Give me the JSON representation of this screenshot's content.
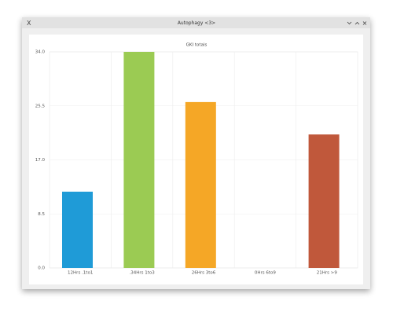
{
  "window": {
    "title": "Autophagy <3>"
  },
  "chart_data": {
    "type": "bar",
    "title": "GKI totals",
    "categories": [
      "12Hrs .1to1",
      ".34Hrs 1to3",
      "26Hrs 3to6",
      "0Hrs 6to9",
      "21Hrs >9"
    ],
    "values": [
      12,
      34,
      26.1,
      0,
      21
    ],
    "colors": [
      "#1f9bd7",
      "#9bcb53",
      "#f5a726",
      "#c0583b",
      "#c0583b"
    ],
    "ylim": [
      0,
      34
    ],
    "yticks": [
      {
        "value": 0,
        "label": "0.0"
      },
      {
        "value": 8.5,
        "label": "8.5"
      },
      {
        "value": 17,
        "label": "17.0"
      },
      {
        "value": 25.5,
        "label": "25.5"
      },
      {
        "value": 34,
        "label": "34.0"
      }
    ],
    "grid": true
  }
}
